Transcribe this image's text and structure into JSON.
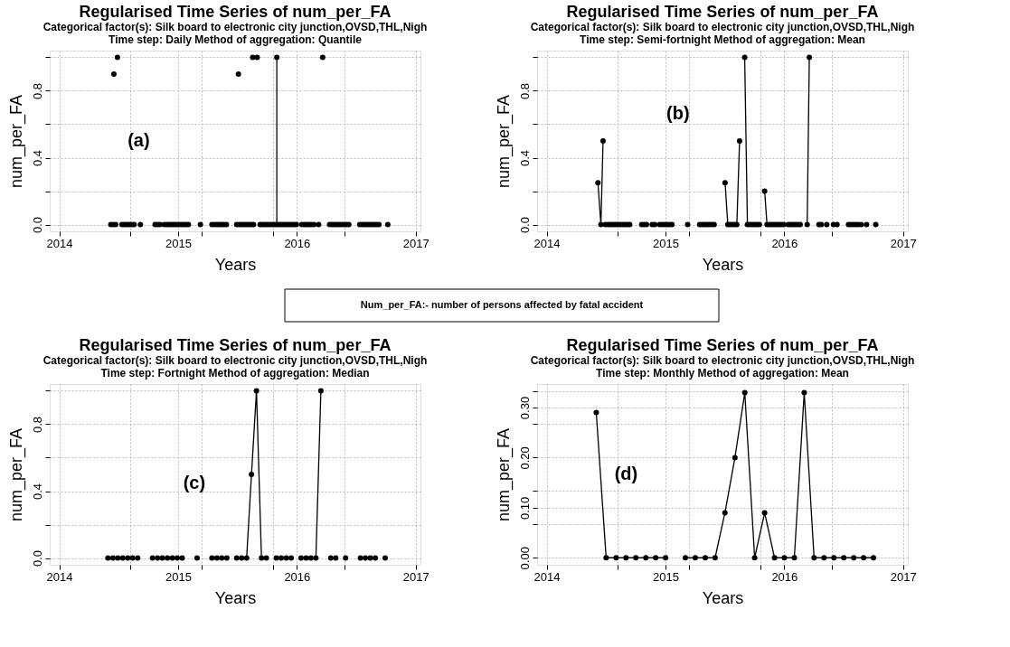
{
  "chart_data": [
    {
      "type": "line",
      "title": "Regularised Time Series of num_per_FA",
      "subtitle": "Categorical factor(s):  Silk board  to electronic city junction,OVSD,THL,Nigh\nTime step:  Daily    Method of aggregation:  Quantile",
      "xlabel": "Years",
      "ylabel": "num_per_FA",
      "xlim": [
        2013.92,
        2017.04
      ],
      "ylim": [
        -0.04,
        1.04
      ],
      "xticks": [
        2014,
        {
          "value": 2014.6,
          "label": null
        },
        2015,
        {
          "value": 2015.2,
          "label": null
        },
        {
          "value": 2015.8,
          "label": null
        },
        2016,
        {
          "value": 2016.4,
          "label": null
        },
        2017
      ],
      "yticks": [
        {
          "value": 0,
          "label": "0.0"
        },
        {
          "value": 0.2,
          "label": null
        },
        {
          "value": 0.4,
          "label": "0.4"
        },
        {
          "value": 0.6,
          "label": null
        },
        {
          "value": 0.8,
          "label": "0.8"
        },
        {
          "value": 1.0,
          "label": null
        }
      ],
      "grid": true,
      "marker": "circle",
      "annotations": [
        "(a)"
      ],
      "series": [
        {
          "type": "scatter",
          "color": "#000000",
          "x": [
            2014.434,
            2014.454,
            2014.46,
            2014.475,
            2014.49,
            2014.528,
            2014.548,
            2014.569,
            2014.589,
            2014.609,
            2014.63,
            2014.683,
            2014.807,
            2014.828,
            2014.848,
            2014.884,
            2014.904,
            2014.924,
            2014.945,
            2014.965,
            2014.985,
            2015.005,
            2015.026,
            2015.046,
            2015.066,
            2015.087,
            2015.188,
            2015.285,
            2015.305,
            2015.325,
            2015.346,
            2015.366,
            2015.386,
            2015.407,
            2015.493,
            2015.508,
            2015.513,
            2015.534,
            2015.554,
            2015.574,
            2015.594,
            2015.615,
            2015.628,
            2015.635,
            2015.666,
            2015.691,
            2015.711,
            2015.732,
            2015.752,
            2015.772,
            2015.793,
            2015.813,
            2015.831,
            2015.833,
            2015.853,
            2015.874,
            2015.894,
            2015.914,
            2015.935,
            2015.955,
            2015.975,
            2015.996,
            2016.041,
            2016.062,
            2016.082,
            2016.102,
            2016.122,
            2016.143,
            2016.183,
            2016.217,
            2016.275,
            2016.295,
            2016.315,
            2016.336,
            2016.356,
            2016.376,
            2016.397,
            2016.417,
            2016.437,
            2016.529,
            2016.549,
            2016.569,
            2016.59,
            2016.61,
            2016.63,
            2016.651,
            2016.671,
            2016.691,
            2016.765
          ],
          "values": [
            0,
            0,
            0.9,
            0,
            1,
            0,
            0,
            0,
            0,
            0,
            0,
            0,
            0,
            0,
            0,
            0,
            0,
            0,
            0,
            0,
            0,
            0,
            0,
            0,
            0,
            0,
            0,
            0,
            0,
            0,
            0,
            0,
            0,
            0,
            0,
            0.9,
            0,
            0,
            0,
            0,
            0,
            0,
            1,
            0,
            1,
            0,
            0,
            0,
            0,
            0,
            0,
            0,
            1,
            0,
            0,
            0,
            0,
            0,
            0,
            0,
            0,
            0,
            0,
            0,
            0,
            0,
            0,
            0,
            0,
            1,
            0,
            0,
            0,
            0,
            0,
            0,
            0,
            0,
            0,
            0,
            0,
            0,
            0,
            0,
            0,
            0,
            0,
            0,
            0
          ]
        },
        {
          "type": "line",
          "marker": "none",
          "color": "#000000",
          "x": [
            2015.831,
            2015.831
          ],
          "values": [
            0,
            1
          ]
        }
      ]
    },
    {
      "type": "line",
      "title": "Regularised Time Series of num_per_FA",
      "subtitle": "Categorical factor(s):  Silk board  to electronic city junction,OVSD,THL,Nigh\nTime step:  Semi-fortnight    Method of aggregation:  Mean",
      "xlabel": "Years",
      "ylabel": "num_per_FA",
      "xlim": [
        2013.92,
        2017.04
      ],
      "ylim": [
        -0.04,
        1.04
      ],
      "xticks": [
        2014,
        {
          "value": 2014.6,
          "label": null
        },
        2015,
        {
          "value": 2015.2,
          "label": null
        },
        {
          "value": 2015.8,
          "label": null
        },
        2016,
        {
          "value": 2016.4,
          "label": null
        },
        2017
      ],
      "yticks": [
        {
          "value": 0,
          "label": "0.0"
        },
        {
          "value": 0.2,
          "label": null
        },
        {
          "value": 0.4,
          "label": "0.4"
        },
        {
          "value": 0.6,
          "label": null
        },
        {
          "value": 0.8,
          "label": "0.8"
        },
        {
          "value": 1.0,
          "label": null
        }
      ],
      "grid": true,
      "marker": "circle",
      "annotations": [
        "(b)"
      ],
      "series": [
        {
          "type": "scatter",
          "color": "#000000",
          "x": [
            2014.432,
            2014.457,
            2014.475,
            2014.495,
            2014.516,
            2014.536,
            2014.556,
            2014.577,
            2014.597,
            2014.617,
            2014.638,
            2014.658,
            2014.678,
            2014.699,
            2014.8,
            2014.821,
            2014.841,
            2014.889,
            2014.91,
            2014.953,
            2014.973,
            2014.994,
            2015.014,
            2015.034,
            2015.055,
            2015.187,
            2015.288,
            2015.309,
            2015.329,
            2015.349,
            2015.37,
            2015.39,
            2015.41,
            2015.502,
            2015.525,
            2015.545,
            2015.565,
            2015.586,
            2015.601,
            2015.624,
            2015.667,
            2015.69,
            2015.71,
            2015.73,
            2015.751,
            2015.771,
            2015.791,
            2015.835,
            2015.855,
            2015.875,
            2015.896,
            2015.916,
            2015.936,
            2015.957,
            2015.977,
            2015.995,
            2016.033,
            2016.053,
            2016.073,
            2016.094,
            2016.114,
            2016.134,
            2016.193,
            2016.211,
            2016.292,
            2016.312,
            2016.358,
            2016.414,
            2016.444,
            2016.541,
            2016.561,
            2016.582,
            2016.602,
            2016.622,
            2016.648,
            2016.693,
            2016.77
          ],
          "values": [
            0.25,
            0,
            0.5,
            0,
            0,
            0,
            0,
            0,
            0,
            0,
            0,
            0,
            0,
            0,
            0,
            0,
            0,
            0,
            0,
            0,
            0,
            0,
            0,
            0,
            0,
            0,
            0,
            0,
            0,
            0,
            0,
            0,
            0,
            0.25,
            0,
            0,
            0,
            0,
            0,
            0.5,
            1,
            0,
            0,
            0,
            0,
            0,
            0,
            0.2,
            0,
            0,
            0,
            0,
            0,
            0,
            0,
            0,
            0,
            0,
            0,
            0,
            0,
            0,
            0,
            1,
            0,
            0,
            0,
            0,
            0,
            0,
            0,
            0,
            0,
            0,
            0,
            0,
            0
          ]
        },
        {
          "type": "line",
          "marker": "none",
          "color": "#000000",
          "x": [
            2014.432,
            2014.457,
            2014.475,
            2015.0,
            2015.502,
            2015.525,
            2015.56,
            2015.601,
            2015.624,
            2015.64,
            2015.667,
            2015.69,
            2015.76,
            2015.835,
            2015.855,
            2016.0,
            2016.193,
            2016.211
          ],
          "values": [
            0.25,
            0,
            0.5,
            null,
            0.25,
            0,
            null,
            0,
            0.5,
            null,
            1,
            0,
            null,
            0.2,
            0,
            null,
            0,
            1
          ]
        }
      ]
    },
    {
      "type": "other",
      "annotations": [
        "Num_per_FA:- number of persons affected by fatal accident"
      ]
    },
    {
      "type": "line",
      "title": "Regularised Time Series of num_per_FA",
      "subtitle": "Categorical factor(s):  Silk board  to electronic city junction,OVSD,THL,Nigh\nTime step:  Fortnight    Method of aggregation:  Median",
      "xlabel": "Years",
      "ylabel": "num_per_FA",
      "xlim": [
        2013.92,
        2017.04
      ],
      "ylim": [
        -0.04,
        1.04
      ],
      "xticks": [
        2014,
        {
          "value": 2014.6,
          "label": null
        },
        2015,
        {
          "value": 2015.2,
          "label": null
        },
        {
          "value": 2015.8,
          "label": null
        },
        2016,
        {
          "value": 2016.4,
          "label": null
        },
        2017
      ],
      "yticks": [
        {
          "value": 0,
          "label": "0.0"
        },
        {
          "value": 0.2,
          "label": null
        },
        {
          "value": 0.4,
          "label": "0.4"
        },
        {
          "value": 0.6,
          "label": null
        },
        {
          "value": 0.8,
          "label": "0.8"
        },
        {
          "value": 1.0,
          "label": null
        }
      ],
      "grid": true,
      "marker": "circle",
      "annotations": [
        "(c)"
      ],
      "series": [
        {
          "type": "line",
          "color": "#000000",
          "x": [
            2014.41,
            2014.452,
            2014.493,
            2014.535,
            2014.577,
            2014.618,
            2014.66,
            2014.702,
            2014.743,
            2014.785,
            2014.827,
            2014.868,
            2014.91,
            2014.952,
            2014.993,
            2015.035,
            2015.077,
            2015.118,
            2015.16,
            2015.202,
            2015.243,
            2015.285,
            2015.327,
            2015.368,
            2015.41,
            2015.452,
            2015.493,
            2015.535,
            2015.577,
            2015.618,
            2015.66,
            2015.702,
            2015.743,
            2015.785,
            2015.827,
            2015.868,
            2015.91,
            2015.952,
            2015.993,
            2016.035,
            2016.077,
            2016.118,
            2016.16,
            2016.202,
            2016.243,
            2016.285,
            2016.327,
            2016.368,
            2016.41,
            2016.452,
            2016.493,
            2016.535,
            2016.577,
            2016.618,
            2016.66,
            2016.702,
            2016.743
          ],
          "values": [
            0,
            0,
            0,
            0,
            0,
            0,
            0,
            null,
            null,
            0,
            0,
            0,
            0,
            0,
            0,
            0,
            null,
            null,
            0,
            null,
            null,
            0,
            0,
            0,
            0,
            null,
            0,
            0,
            0,
            0.5,
            1,
            0,
            0,
            null,
            0,
            0,
            0,
            0,
            null,
            0,
            0,
            0,
            0,
            1,
            null,
            0,
            0,
            null,
            0,
            null,
            null,
            0,
            0,
            0,
            0,
            null,
            0
          ]
        }
      ]
    },
    {
      "type": "line",
      "title": "Regularised Time Series of num_per_FA",
      "subtitle": "Categorical factor(s):  Silk board  to electronic city junction,OVSD,THL,Nigh\nTime step:  Monthly    Method of aggregation:  Mean",
      "xlabel": "Years",
      "ylabel": "num_per_FA",
      "xlim": [
        2013.92,
        2017.04
      ],
      "ylim": [
        -0.014,
        0.347
      ],
      "xticks": [
        2014,
        {
          "value": 2014.6,
          "label": null
        },
        2015,
        {
          "value": 2015.2,
          "label": null
        },
        {
          "value": 2015.8,
          "label": null
        },
        2016,
        {
          "value": 2016.4,
          "label": null
        },
        2017
      ],
      "yticks": [
        {
          "value": 0,
          "label": "0.00"
        },
        {
          "value": 0.0667,
          "label": null
        },
        {
          "value": 0.1,
          "label": "0.10"
        },
        {
          "value": 0.1333,
          "label": null
        },
        {
          "value": 0.2,
          "label": "0.20"
        },
        {
          "value": 0.2667,
          "label": null
        },
        {
          "value": 0.3,
          "label": "0.30"
        },
        {
          "value": 0.3333,
          "label": null
        }
      ],
      "grid": true,
      "marker": "circle",
      "annotations": [
        "(d)"
      ],
      "series": [
        {
          "type": "line",
          "color": "#000000",
          "x": [
            2014.418,
            2014.501,
            2014.585,
            2014.668,
            2014.751,
            2014.835,
            2014.918,
            2015.001,
            2015.085,
            2015.168,
            2015.251,
            2015.335,
            2015.418,
            2015.501,
            2015.585,
            2015.668,
            2015.751,
            2015.835,
            2015.918,
            2016.001,
            2016.085,
            2016.168,
            2016.251,
            2016.335,
            2016.418,
            2016.501,
            2016.585,
            2016.668,
            2016.751
          ],
          "values": [
            0.29,
            0,
            0,
            0,
            0,
            0,
            0,
            0,
            null,
            0,
            0,
            0,
            0,
            0.09,
            0.2,
            0.33,
            0,
            0.09,
            0,
            0,
            0,
            0.33,
            0,
            0,
            0,
            0,
            0,
            0,
            0
          ]
        }
      ]
    }
  ]
}
